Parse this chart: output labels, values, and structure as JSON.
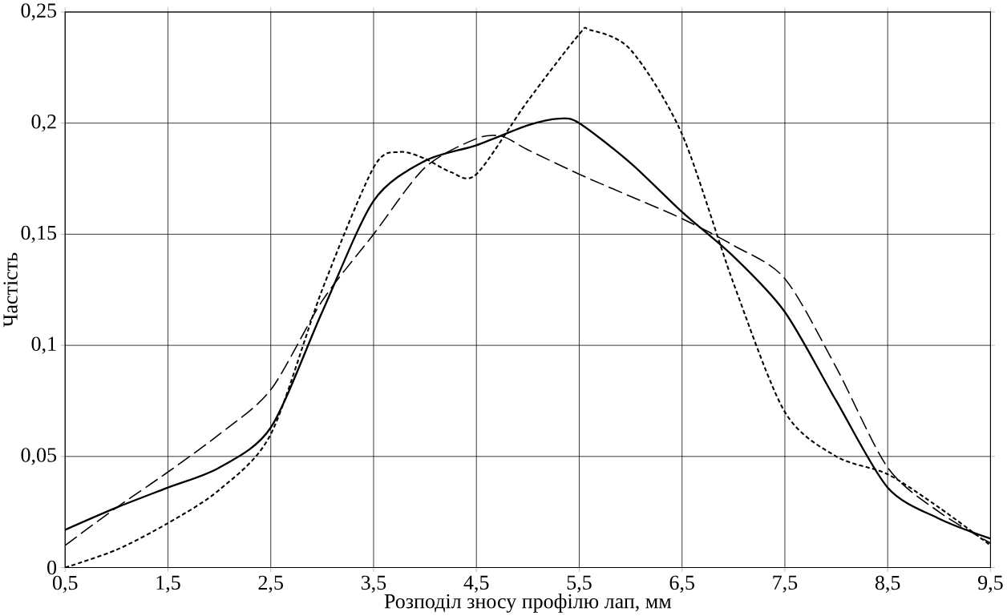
{
  "chart_data": {
    "type": "line",
    "xlabel": "Розподіл зносу профілю лап, мм",
    "ylabel": "Частість",
    "xlim": [
      0.5,
      9.5
    ],
    "xticks": [
      {
        "value": 0.5,
        "label": "0,5"
      },
      {
        "value": 1.5,
        "label": "1,5"
      },
      {
        "value": 2.5,
        "label": "2,5"
      },
      {
        "value": 3.5,
        "label": "3,5"
      },
      {
        "value": 4.5,
        "label": "4,5"
      },
      {
        "value": 5.5,
        "label": "5,5"
      },
      {
        "value": 6.5,
        "label": "6,5"
      },
      {
        "value": 7.5,
        "label": "7,5"
      },
      {
        "value": 8.5,
        "label": "8,5"
      },
      {
        "value": 9.5,
        "label": "9,5"
      }
    ],
    "ylim": [
      0,
      0.25
    ],
    "yticks": [
      0,
      {
        "value": 0.05,
        "label": "0,05"
      },
      {
        "value": 0.1,
        "label": "0,1"
      },
      {
        "value": 0.15,
        "label": "0,15"
      },
      {
        "value": 0.2,
        "label": "0,2"
      },
      {
        "value": 0.25,
        "label": "0,25"
      }
    ],
    "grid": true,
    "marker": "none",
    "series": [
      {
        "color": "#000000",
        "line_style": "solid",
        "x": [
          0.5,
          1,
          1.5,
          2,
          2.5,
          3,
          3.5,
          4,
          4.5,
          5,
          5.3,
          5.5,
          6,
          6.5,
          7,
          7.5,
          8,
          8.5,
          9,
          9.5
        ],
        "values": [
          0.017,
          0.027,
          0.036,
          0.045,
          0.063,
          0.115,
          0.165,
          0.183,
          0.19,
          0.199,
          0.202,
          0.2,
          0.182,
          0.16,
          0.14,
          0.115,
          0.075,
          0.036,
          0.022,
          0.013
        ]
      },
      {
        "color": "#000000",
        "line_style": "dotted",
        "x": [
          0.5,
          1,
          1.5,
          2,
          2.5,
          3,
          3.5,
          3.75,
          4,
          4.25,
          4.5,
          5,
          5.5,
          5.6,
          6,
          6.5,
          7,
          7.5,
          8,
          8.5,
          9,
          9.5
        ],
        "values": [
          0,
          0.008,
          0.02,
          0.035,
          0.06,
          0.125,
          0.18,
          0.187,
          0.184,
          0.178,
          0.177,
          0.21,
          0.24,
          0.242,
          0.233,
          0.195,
          0.128,
          0.07,
          0.05,
          0.042,
          0.027,
          0.01
        ]
      },
      {
        "color": "#000000",
        "line_style": "dashed",
        "x": [
          0.5,
          1,
          1.5,
          2,
          2.5,
          3,
          3.5,
          4,
          4.5,
          4.75,
          5,
          5.5,
          6,
          6.5,
          7,
          7.5,
          8,
          8.5,
          9,
          9.5
        ],
        "values": [
          0.01,
          0.027,
          0.043,
          0.06,
          0.08,
          0.12,
          0.15,
          0.18,
          0.193,
          0.194,
          0.188,
          0.177,
          0.167,
          0.157,
          0.145,
          0.13,
          0.09,
          0.045,
          0.025,
          0.011
        ]
      }
    ]
  }
}
